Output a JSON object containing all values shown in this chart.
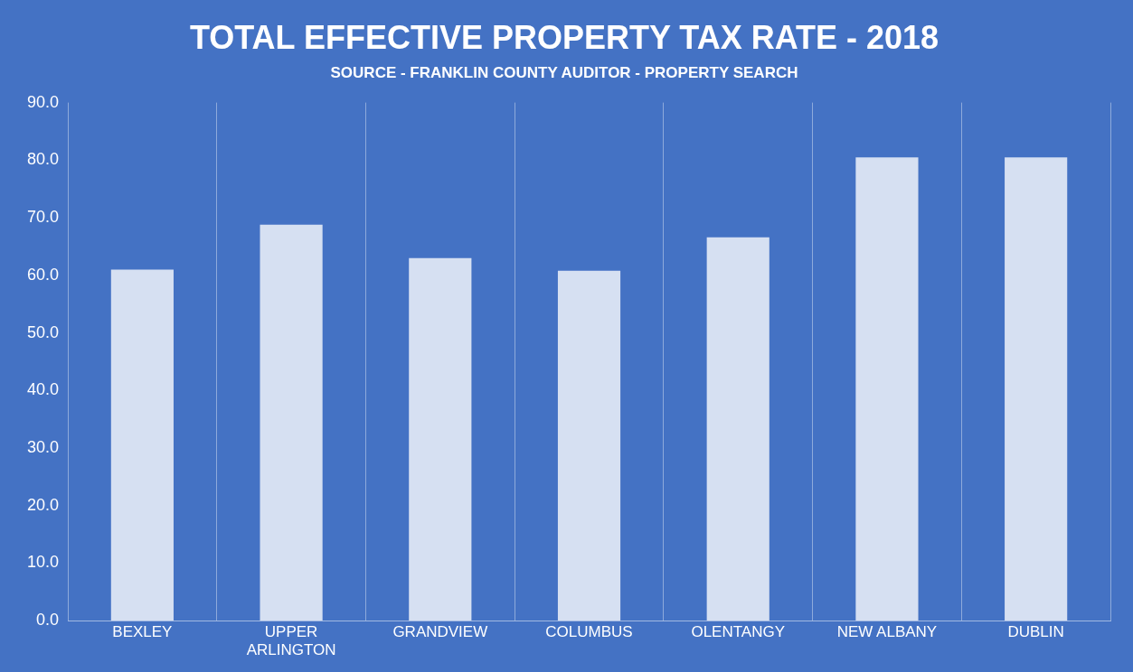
{
  "chart_data": {
    "type": "bar",
    "title": "TOTAL EFFECTIVE PROPERTY TAX RATE - 2018",
    "subtitle": "SOURCE - FRANKLIN COUNTY AUDITOR - PROPERTY SEARCH",
    "categories": [
      "BEXLEY",
      "UPPER ARLINGTON",
      "GRANDVIEW",
      "COLUMBUS",
      "OLENTANGY",
      "NEW ALBANY",
      "DUBLIN"
    ],
    "values": [
      61.0,
      68.8,
      63.0,
      60.8,
      66.6,
      80.5,
      80.5
    ],
    "color": "#d6e0f2",
    "ylim": [
      0,
      90
    ],
    "yticks": [
      {
        "value": 0,
        "label": "0.0"
      },
      {
        "value": 10,
        "label": "10.0"
      },
      {
        "value": 20,
        "label": "20.0"
      },
      {
        "value": 30,
        "label": "30.0"
      },
      {
        "value": 40,
        "label": "40.0"
      },
      {
        "value": 50,
        "label": "50.0"
      },
      {
        "value": 60,
        "label": "60.0"
      },
      {
        "value": 70,
        "label": "70.0"
      },
      {
        "value": 80,
        "label": "80.0"
      },
      {
        "value": 90,
        "label": "90.0"
      }
    ],
    "grid": "x",
    "legend": false
  }
}
